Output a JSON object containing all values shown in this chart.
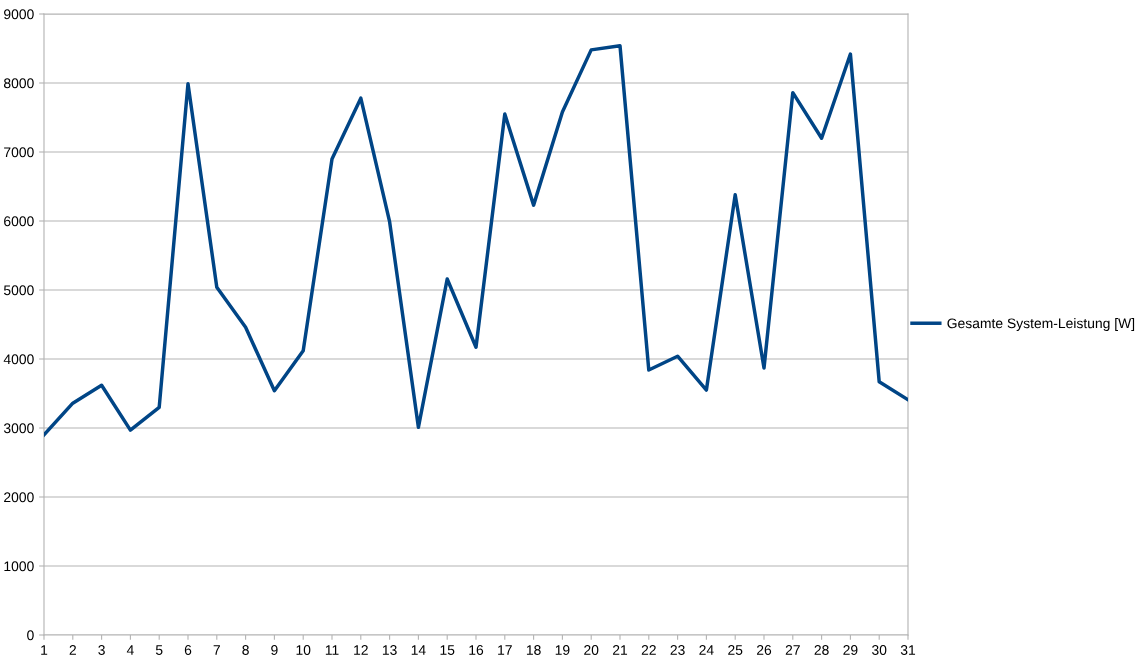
{
  "chart_data": {
    "type": "line",
    "categories": [
      "1",
      "2",
      "3",
      "4",
      "5",
      "6",
      "7",
      "8",
      "9",
      "10",
      "11",
      "12",
      "13",
      "14",
      "15",
      "16",
      "17",
      "18",
      "19",
      "20",
      "21",
      "22",
      "23",
      "24",
      "25",
      "26",
      "27",
      "28",
      "29",
      "30",
      "31"
    ],
    "series": [
      {
        "name": "Gesamte System-Leistung [W]",
        "color": "#004586",
        "values": [
          2900,
          3360,
          3620,
          2970,
          3300,
          7990,
          5040,
          4460,
          3540,
          4120,
          6900,
          7780,
          5990,
          3010,
          5160,
          4170,
          7550,
          6230,
          7580,
          8480,
          8540,
          3840,
          4040,
          3550,
          6380,
          3870,
          7860,
          7200,
          8420,
          3670,
          3410
        ]
      }
    ],
    "ylim": [
      0,
      9000
    ],
    "yticks": [
      0,
      1000,
      2000,
      3000,
      4000,
      5000,
      6000,
      7000,
      8000,
      9000
    ],
    "grid": "y",
    "legend": "right",
    "marker": "none",
    "line_style": "solid"
  }
}
